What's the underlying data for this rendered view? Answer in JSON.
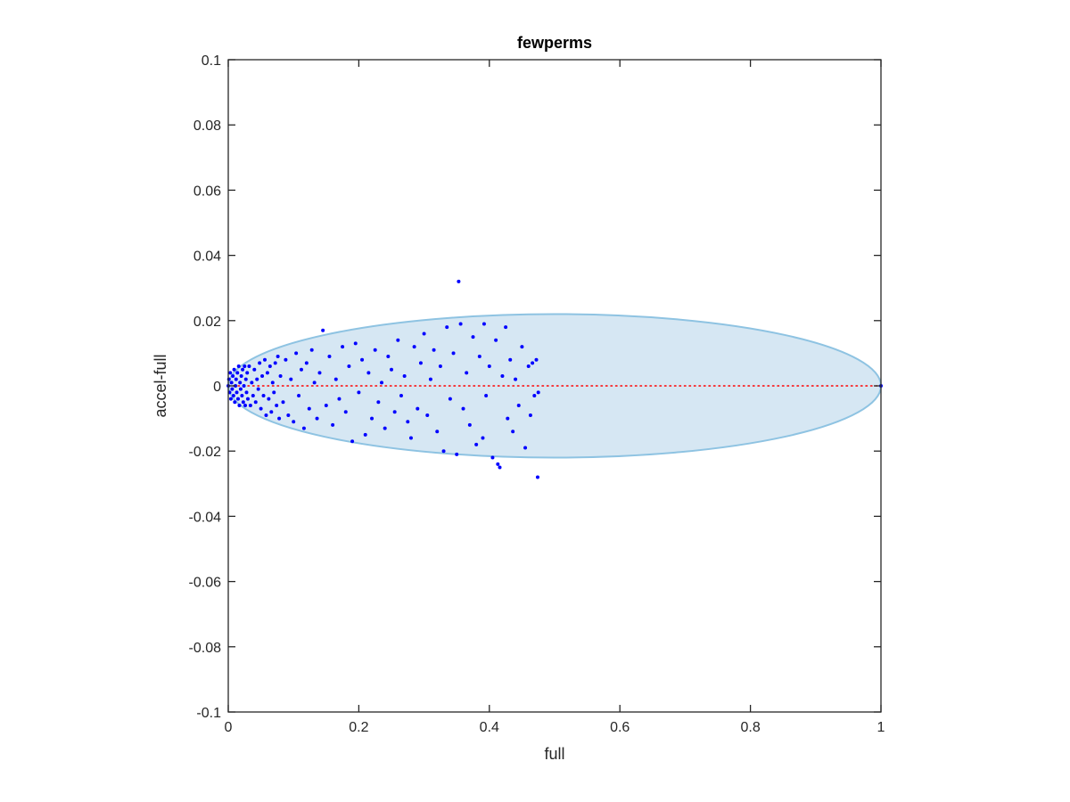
{
  "chart_data": {
    "type": "scatter",
    "title": "fewperms",
    "xlabel": "full",
    "ylabel": "accel-full",
    "xlim": [
      0,
      1
    ],
    "ylim": [
      -0.1,
      0.1
    ],
    "xticks": [
      "0",
      "0.2",
      "0.4",
      "0.6",
      "0.8",
      "1"
    ],
    "xtick_values": [
      0,
      0.2,
      0.4,
      0.6,
      0.8,
      1
    ],
    "yticks": [
      "0.1",
      "0.08",
      "0.06",
      "0.04",
      "0.02",
      "0",
      "-0.02",
      "-0.04",
      "-0.06",
      "-0.08",
      "-0.1"
    ],
    "ytick_values": [
      0.1,
      0.08,
      0.06,
      0.04,
      0.02,
      0,
      -0.02,
      -0.04,
      -0.06,
      -0.08,
      -0.1
    ],
    "grid": false,
    "colors": {
      "points": "#0000ff",
      "ellipse_fill": "#d6e7f3",
      "ellipse_edge": "#8ec3e2",
      "reference_line": "#ff0000",
      "axes": "#262626"
    },
    "ellipse": {
      "cx": 0.5,
      "cy": 0,
      "rx": 0.5,
      "ry": 0.022
    },
    "reference_line": {
      "y": 0,
      "x": [
        0,
        1
      ],
      "style": "dotted"
    },
    "points": [
      [
        0.0,
        0.0
      ],
      [
        0.001,
        0.002
      ],
      [
        0.002,
        -0.002
      ],
      [
        0.003,
        0.004
      ],
      [
        0.004,
        -0.004
      ],
      [
        0.005,
        0.001
      ],
      [
        0.006,
        -0.001
      ],
      [
        0.007,
        0.003
      ],
      [
        0.008,
        -0.003
      ],
      [
        0.009,
        0.005
      ],
      [
        0.01,
        -0.005
      ],
      [
        0.011,
        0.0
      ],
      [
        0.012,
        0.002
      ],
      [
        0.013,
        -0.002
      ],
      [
        0.014,
        0.004
      ],
      [
        0.015,
        -0.004
      ],
      [
        0.016,
        0.006
      ],
      [
        0.017,
        -0.006
      ],
      [
        0.018,
        0.001
      ],
      [
        0.019,
        -0.001
      ],
      [
        0.02,
        0.003
      ],
      [
        0.021,
        -0.003
      ],
      [
        0.022,
        0.005
      ],
      [
        0.023,
        -0.005
      ],
      [
        0.024,
        0.0
      ],
      [
        0.025,
        0.006
      ],
      [
        0.026,
        -0.006
      ],
      [
        0.027,
        0.002
      ],
      [
        0.028,
        -0.002
      ],
      [
        0.029,
        0.004
      ],
      [
        0.03,
        -0.004
      ],
      [
        0.032,
        0.006
      ],
      [
        0.034,
        -0.006
      ],
      [
        0.036,
        0.001
      ],
      [
        0.038,
        -0.003
      ],
      [
        0.04,
        0.005
      ],
      [
        0.042,
        -0.005
      ],
      [
        0.044,
        0.002
      ],
      [
        0.046,
        -0.001
      ],
      [
        0.048,
        0.007
      ],
      [
        0.05,
        -0.007
      ],
      [
        0.052,
        0.003
      ],
      [
        0.054,
        -0.003
      ],
      [
        0.056,
        0.008
      ],
      [
        0.058,
        -0.009
      ],
      [
        0.06,
        0.004
      ],
      [
        0.062,
        -0.004
      ],
      [
        0.064,
        0.006
      ],
      [
        0.066,
        -0.008
      ],
      [
        0.068,
        0.001
      ],
      [
        0.07,
        -0.002
      ],
      [
        0.072,
        0.007
      ],
      [
        0.074,
        -0.006
      ],
      [
        0.076,
        0.009
      ],
      [
        0.078,
        -0.01
      ],
      [
        0.08,
        0.003
      ],
      [
        0.084,
        -0.005
      ],
      [
        0.088,
        0.008
      ],
      [
        0.092,
        -0.009
      ],
      [
        0.096,
        0.002
      ],
      [
        0.1,
        -0.011
      ],
      [
        0.104,
        0.01
      ],
      [
        0.108,
        -0.003
      ],
      [
        0.112,
        0.005
      ],
      [
        0.116,
        -0.013
      ],
      [
        0.12,
        0.007
      ],
      [
        0.124,
        -0.007
      ],
      [
        0.128,
        0.011
      ],
      [
        0.132,
        0.001
      ],
      [
        0.136,
        -0.01
      ],
      [
        0.14,
        0.004
      ],
      [
        0.145,
        0.017
      ],
      [
        0.15,
        -0.006
      ],
      [
        0.155,
        0.009
      ],
      [
        0.16,
        -0.012
      ],
      [
        0.165,
        0.002
      ],
      [
        0.17,
        -0.004
      ],
      [
        0.175,
        0.012
      ],
      [
        0.18,
        -0.008
      ],
      [
        0.185,
        0.006
      ],
      [
        0.19,
        -0.017
      ],
      [
        0.195,
        0.013
      ],
      [
        0.2,
        -0.002
      ],
      [
        0.205,
        0.008
      ],
      [
        0.21,
        -0.015
      ],
      [
        0.215,
        0.004
      ],
      [
        0.22,
        -0.01
      ],
      [
        0.225,
        0.011
      ],
      [
        0.23,
        -0.005
      ],
      [
        0.235,
        0.001
      ],
      [
        0.24,
        -0.013
      ],
      [
        0.245,
        0.009
      ],
      [
        0.25,
        0.005
      ],
      [
        0.255,
        -0.008
      ],
      [
        0.26,
        0.014
      ],
      [
        0.265,
        -0.003
      ],
      [
        0.27,
        0.003
      ],
      [
        0.275,
        -0.011
      ],
      [
        0.28,
        -0.016
      ],
      [
        0.285,
        0.012
      ],
      [
        0.29,
        -0.007
      ],
      [
        0.295,
        0.007
      ],
      [
        0.3,
        0.016
      ],
      [
        0.305,
        -0.009
      ],
      [
        0.31,
        0.002
      ],
      [
        0.315,
        0.011
      ],
      [
        0.32,
        -0.014
      ],
      [
        0.325,
        0.006
      ],
      [
        0.33,
        -0.02
      ],
      [
        0.335,
        0.018
      ],
      [
        0.34,
        -0.004
      ],
      [
        0.345,
        0.01
      ],
      [
        0.35,
        -0.021
      ],
      [
        0.353,
        0.032
      ],
      [
        0.356,
        0.019
      ],
      [
        0.36,
        -0.007
      ],
      [
        0.365,
        0.004
      ],
      [
        0.37,
        -0.012
      ],
      [
        0.375,
        0.015
      ],
      [
        0.38,
        -0.018
      ],
      [
        0.385,
        0.009
      ],
      [
        0.39,
        -0.016
      ],
      [
        0.392,
        0.019
      ],
      [
        0.395,
        -0.003
      ],
      [
        0.4,
        0.006
      ],
      [
        0.405,
        -0.022
      ],
      [
        0.41,
        0.014
      ],
      [
        0.413,
        -0.024
      ],
      [
        0.416,
        -0.025
      ],
      [
        0.42,
        0.003
      ],
      [
        0.425,
        0.018
      ],
      [
        0.428,
        -0.01
      ],
      [
        0.432,
        0.008
      ],
      [
        0.436,
        -0.014
      ],
      [
        0.44,
        0.002
      ],
      [
        0.445,
        -0.006
      ],
      [
        0.45,
        0.012
      ],
      [
        0.455,
        -0.019
      ],
      [
        0.46,
        0.006
      ],
      [
        0.463,
        -0.009
      ],
      [
        0.466,
        0.007
      ],
      [
        0.469,
        -0.003
      ],
      [
        0.472,
        0.008
      ],
      [
        0.474,
        -0.028
      ],
      [
        0.475,
        -0.002
      ],
      [
        1.0,
        0.0
      ]
    ]
  }
}
